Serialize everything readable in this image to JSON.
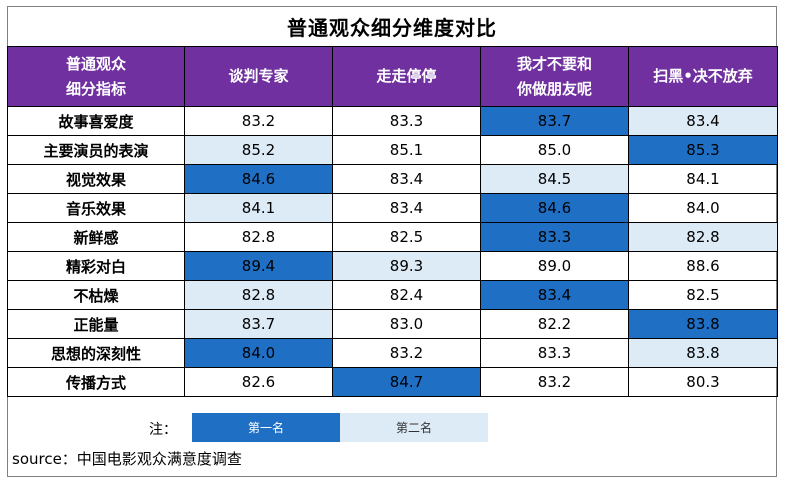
{
  "chart_data": {
    "type": "table",
    "title": "普通观众细分维度对比",
    "corner_header": [
      "普通观众",
      "细分指标"
    ],
    "columns": [
      {
        "name": "谈判专家"
      },
      {
        "name": "走走停停"
      },
      {
        "name": "我才不要和你做朋友呢",
        "lines": [
          "我才不要和",
          "你做朋友呢"
        ]
      },
      {
        "name": "扫黑•决不放弃"
      }
    ],
    "rows": [
      {
        "label": "故事喜爱度",
        "values": [
          "83.2",
          "83.3",
          "83.7",
          "83.4"
        ],
        "ranks": [
          0,
          0,
          1,
          2
        ]
      },
      {
        "label": "主要演员的表演",
        "values": [
          "85.2",
          "85.1",
          "85.0",
          "85.3"
        ],
        "ranks": [
          2,
          0,
          0,
          1
        ]
      },
      {
        "label": "视觉效果",
        "values": [
          "84.6",
          "83.4",
          "84.5",
          "84.1"
        ],
        "ranks": [
          1,
          0,
          2,
          0
        ]
      },
      {
        "label": "音乐效果",
        "values": [
          "84.1",
          "83.4",
          "84.6",
          "84.0"
        ],
        "ranks": [
          2,
          0,
          1,
          0
        ]
      },
      {
        "label": "新鲜感",
        "values": [
          "82.8",
          "82.5",
          "83.3",
          "82.8"
        ],
        "ranks": [
          0,
          0,
          1,
          2
        ]
      },
      {
        "label": "精彩对白",
        "values": [
          "89.4",
          "89.3",
          "89.0",
          "88.6"
        ],
        "ranks": [
          1,
          2,
          0,
          0
        ]
      },
      {
        "label": "不枯燥",
        "values": [
          "82.8",
          "82.4",
          "83.4",
          "82.5"
        ],
        "ranks": [
          2,
          0,
          1,
          0
        ]
      },
      {
        "label": "正能量",
        "values": [
          "83.7",
          "83.0",
          "82.2",
          "83.8"
        ],
        "ranks": [
          2,
          0,
          0,
          1
        ]
      },
      {
        "label": "思想的深刻性",
        "values": [
          "84.0",
          "83.2",
          "83.3",
          "83.8"
        ],
        "ranks": [
          1,
          0,
          0,
          2
        ]
      },
      {
        "label": "传播方式",
        "values": [
          "82.6",
          "84.7",
          "83.2",
          "80.3"
        ],
        "ranks": [
          0,
          1,
          0,
          0
        ]
      }
    ],
    "legend": {
      "note": "注：",
      "first_label": "第一名",
      "second_label": "第二名",
      "first_color": "#1F6FC5",
      "second_color": "#DDEBF7"
    },
    "header_color": "#7030A0"
  },
  "source": "source：中国电影观众满意度调查"
}
